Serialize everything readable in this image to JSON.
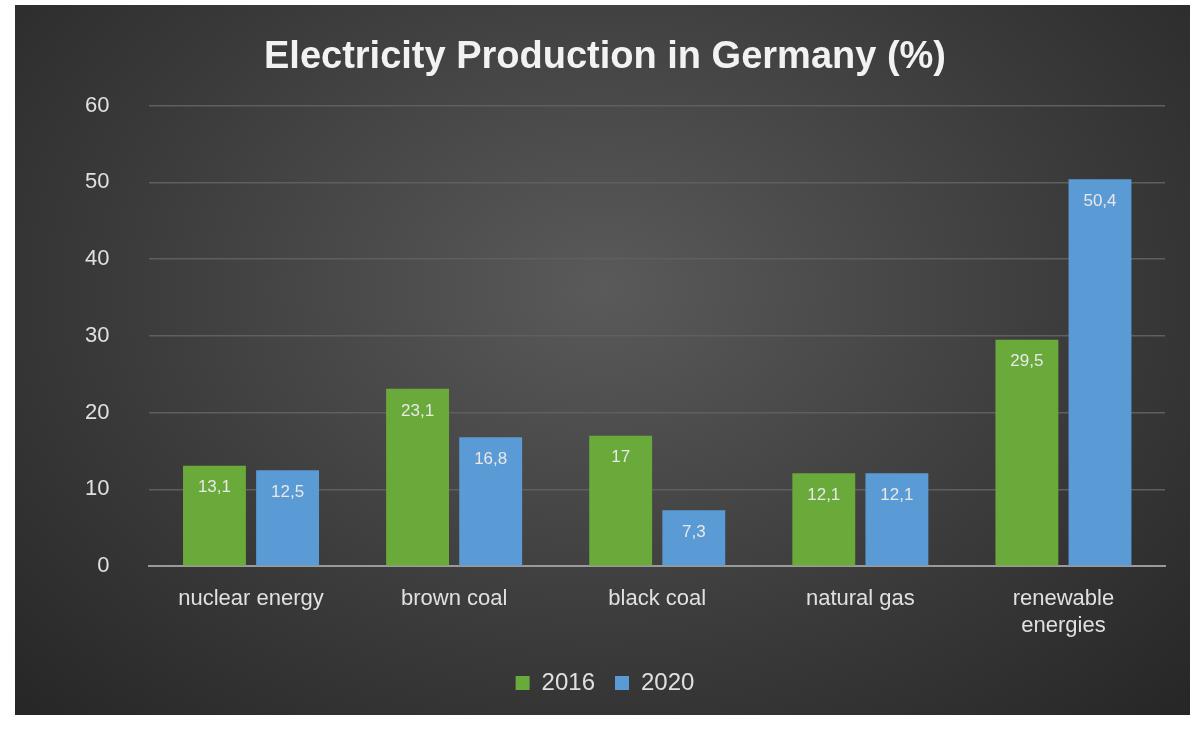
{
  "chart_data": {
    "type": "bar",
    "title": "Electricity Production in Germany (%)",
    "categories": [
      "nuclear energy",
      "brown coal",
      "black coal",
      "natural gas",
      "renewable energies"
    ],
    "series": [
      {
        "name": "2016",
        "color": "#6aaa3a",
        "values": [
          13.1,
          23.1,
          17,
          12.1,
          29.5
        ],
        "value_labels": [
          "13,1",
          "23,1",
          "17",
          "12,1",
          "29,5"
        ]
      },
      {
        "name": "2020",
        "color": "#5b9bd5",
        "values": [
          12.5,
          16.8,
          7.3,
          12.1,
          50.4
        ],
        "value_labels": [
          "12,5",
          "16,8",
          "7,3",
          "12,1",
          "50,4"
        ]
      }
    ],
    "ylim": [
      0,
      60
    ],
    "yticks": [
      0,
      10,
      20,
      30,
      40,
      50,
      60
    ],
    "grid": "y",
    "legend": "bottom"
  }
}
